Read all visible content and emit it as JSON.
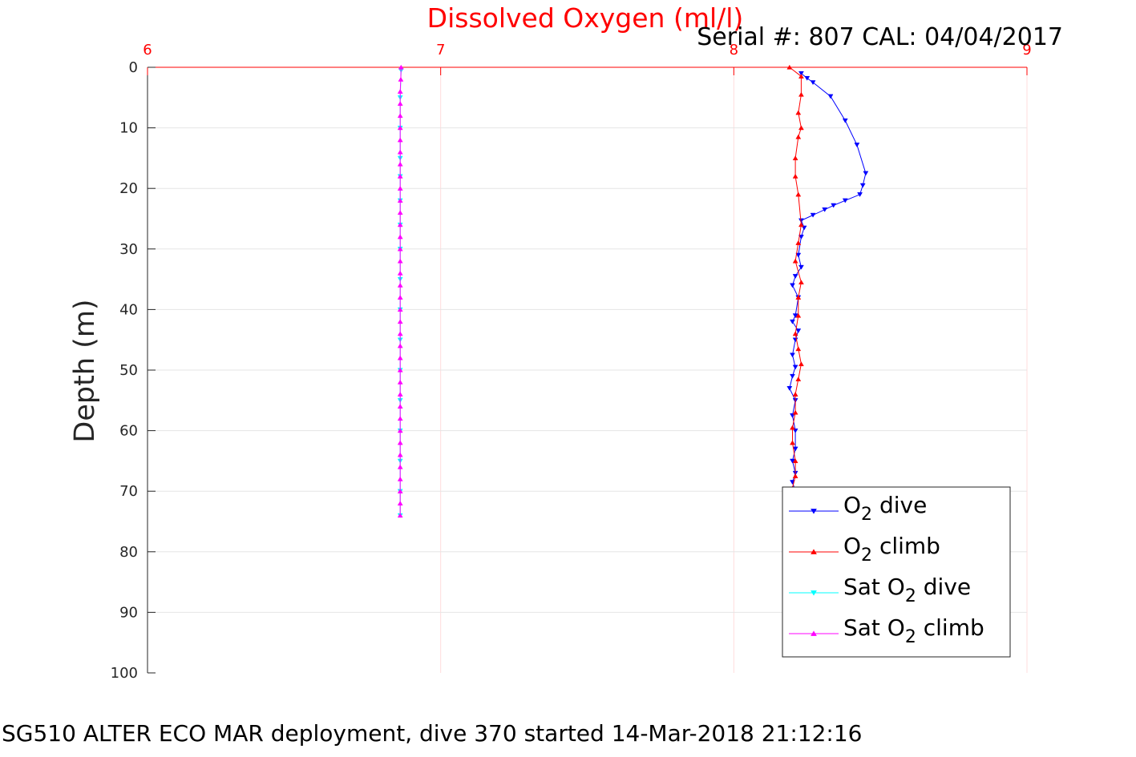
{
  "chart_data": {
    "type": "line",
    "title": "Dissolved Oxygen (ml/l)",
    "subtitle": "Serial #: 807  CAL: 04/04/2017",
    "ylabel": "Depth (m)",
    "caption": "SG510 ALTER ECO MAR deployment, dive 370 started 14-Mar-2018 21:12:16",
    "xlim": [
      6,
      9
    ],
    "ylim": [
      0,
      100
    ],
    "y_reversed": true,
    "x_axis_position": "top",
    "grid": true,
    "x_ticks": [
      "6",
      "7",
      "8",
      "9"
    ],
    "y_ticks": [
      "0",
      "10",
      "20",
      "30",
      "40",
      "50",
      "60",
      "70",
      "80",
      "90",
      "100"
    ],
    "legend_position": "bottom-right",
    "series": [
      {
        "name": "O2 dive",
        "legend_base": "O",
        "legend_sub": "2",
        "legend_suffix": " dive",
        "color": "#0000ff",
        "marker": "down-triangle",
        "points": [
          [
            8.23,
            1.0
          ],
          [
            8.25,
            1.8
          ],
          [
            8.27,
            2.5
          ],
          [
            8.33,
            4.8
          ],
          [
            8.38,
            8.8
          ],
          [
            8.42,
            12.8
          ],
          [
            8.45,
            17.5
          ],
          [
            8.44,
            19.5
          ],
          [
            8.43,
            21.0
          ],
          [
            8.38,
            22.0
          ],
          [
            8.34,
            22.8
          ],
          [
            8.31,
            23.5
          ],
          [
            8.27,
            24.4
          ],
          [
            8.23,
            25.3
          ],
          [
            8.24,
            26.5
          ],
          [
            8.23,
            28.0
          ],
          [
            8.22,
            31.0
          ],
          [
            8.23,
            33.0
          ],
          [
            8.21,
            34.5
          ],
          [
            8.2,
            36.0
          ],
          [
            8.22,
            38.0
          ],
          [
            8.21,
            41.0
          ],
          [
            8.2,
            42.0
          ],
          [
            8.22,
            43.5
          ],
          [
            8.21,
            45.0
          ],
          [
            8.2,
            47.5
          ],
          [
            8.21,
            49.5
          ],
          [
            8.2,
            51.0
          ],
          [
            8.19,
            53.0
          ],
          [
            8.21,
            55.0
          ],
          [
            8.2,
            57.5
          ],
          [
            8.21,
            60.0
          ],
          [
            8.21,
            63.0
          ],
          [
            8.2,
            65.0
          ],
          [
            8.21,
            67.0
          ],
          [
            8.2,
            68.5
          ],
          [
            8.21,
            70.0
          ]
        ]
      },
      {
        "name": "O2 climb",
        "legend_base": "O",
        "legend_sub": "2",
        "legend_suffix": " climb",
        "color": "#ff0000",
        "marker": "up-triangle",
        "points": [
          [
            8.19,
            0.0
          ],
          [
            8.23,
            1.5
          ],
          [
            8.23,
            4.5
          ],
          [
            8.22,
            7.5
          ],
          [
            8.23,
            10.0
          ],
          [
            8.22,
            11.5
          ],
          [
            8.21,
            15.0
          ],
          [
            8.21,
            18.0
          ],
          [
            8.22,
            21.0
          ],
          [
            8.23,
            26.0
          ],
          [
            8.22,
            29.0
          ],
          [
            8.21,
            32.0
          ],
          [
            8.23,
            35.5
          ],
          [
            8.22,
            38.0
          ],
          [
            8.22,
            41.0
          ],
          [
            8.21,
            44.0
          ],
          [
            8.22,
            46.5
          ],
          [
            8.23,
            49.0
          ],
          [
            8.22,
            51.5
          ],
          [
            8.21,
            54.0
          ],
          [
            8.21,
            57.0
          ],
          [
            8.2,
            59.5
          ],
          [
            8.2,
            62.0
          ],
          [
            8.21,
            65.0
          ],
          [
            8.21,
            67.5
          ],
          [
            8.2,
            69.5
          ]
        ]
      },
      {
        "name": "Sat O2 dive",
        "legend_base": "Sat O",
        "legend_sub": "2",
        "legend_suffix": " dive",
        "color": "#00ffff",
        "marker": "down-triangle",
        "points": [
          [
            6.865,
            0.5
          ],
          [
            6.862,
            5.0
          ],
          [
            6.862,
            10.0
          ],
          [
            6.862,
            15.0
          ],
          [
            6.862,
            18.0
          ],
          [
            6.862,
            22.0
          ],
          [
            6.862,
            26.0
          ],
          [
            6.862,
            30.0
          ],
          [
            6.862,
            35.0
          ],
          [
            6.862,
            40.0
          ],
          [
            6.862,
            45.0
          ],
          [
            6.862,
            50.0
          ],
          [
            6.862,
            55.0
          ],
          [
            6.862,
            60.0
          ],
          [
            6.862,
            65.0
          ],
          [
            6.862,
            70.0
          ],
          [
            6.862,
            74.0
          ]
        ]
      },
      {
        "name": "Sat O2 climb",
        "legend_base": "Sat O",
        "legend_sub": "2",
        "legend_suffix": " climb",
        "color": "#ff00ff",
        "marker": "up-triangle",
        "points": [
          [
            6.865,
            0.0
          ],
          [
            6.864,
            2.0
          ],
          [
            6.862,
            4.0
          ],
          [
            6.862,
            6.0
          ],
          [
            6.862,
            8.0
          ],
          [
            6.862,
            10.0
          ],
          [
            6.862,
            12.0
          ],
          [
            6.862,
            14.0
          ],
          [
            6.862,
            16.0
          ],
          [
            6.862,
            18.0
          ],
          [
            6.862,
            20.0
          ],
          [
            6.862,
            22.0
          ],
          [
            6.862,
            24.0
          ],
          [
            6.862,
            26.0
          ],
          [
            6.862,
            28.0
          ],
          [
            6.862,
            30.0
          ],
          [
            6.862,
            32.0
          ],
          [
            6.862,
            34.0
          ],
          [
            6.862,
            36.0
          ],
          [
            6.862,
            38.0
          ],
          [
            6.862,
            40.0
          ],
          [
            6.862,
            42.0
          ],
          [
            6.862,
            44.0
          ],
          [
            6.862,
            46.0
          ],
          [
            6.862,
            48.0
          ],
          [
            6.862,
            50.0
          ],
          [
            6.862,
            52.0
          ],
          [
            6.862,
            54.0
          ],
          [
            6.862,
            56.0
          ],
          [
            6.862,
            58.0
          ],
          [
            6.862,
            60.0
          ],
          [
            6.862,
            62.0
          ],
          [
            6.862,
            64.0
          ],
          [
            6.862,
            66.0
          ],
          [
            6.862,
            68.0
          ],
          [
            6.862,
            70.0
          ],
          [
            6.862,
            72.0
          ],
          [
            6.862,
            74.0
          ]
        ]
      }
    ]
  }
}
